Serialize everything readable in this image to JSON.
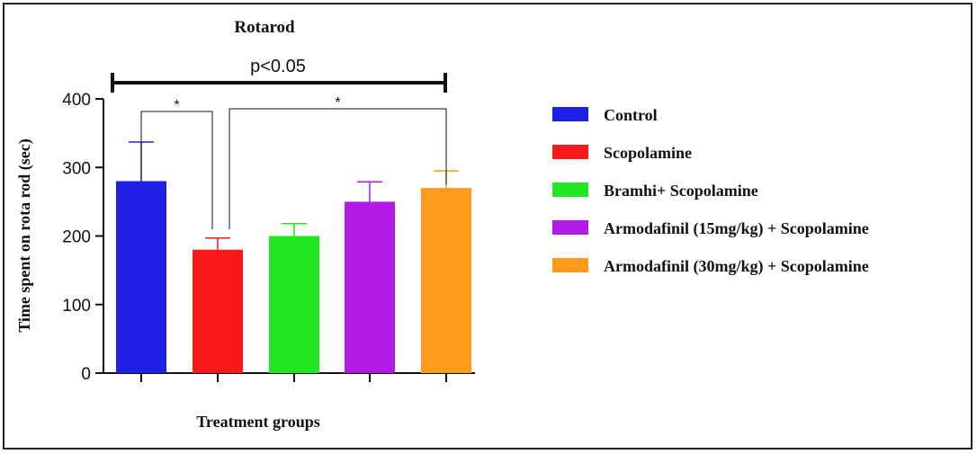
{
  "chart_data": {
    "type": "bar",
    "title": "Rotarod",
    "xlabel": "Treatment groups",
    "ylabel": "Time spent on rota rod (sec)",
    "ylim": [
      0,
      400
    ],
    "yticks": [
      "0",
      "100",
      "200",
      "300",
      "400"
    ],
    "grid": false,
    "legend_position": "right",
    "categories": [
      "Control",
      "Scopolamine",
      "Bramhi+ Scopolamine",
      "Armodafinil (15mg/kg) + Scopolamine",
      "Armodafinil (30mg/kg) + Scopolamine"
    ],
    "values": [
      280,
      180,
      200,
      250,
      270
    ],
    "errors": [
      57,
      17,
      18,
      29,
      25
    ],
    "colors": [
      "#1f1fe6",
      "#fa1a1a",
      "#22e622",
      "#b21ae6",
      "#ff9a1a"
    ],
    "significance": {
      "overall_label": "p<0.05",
      "overall_span": [
        "Control",
        "Armodafinil (30mg/kg) + Scopolamine"
      ],
      "pairs": [
        {
          "from": "Control",
          "to": "Scopolamine",
          "label": "*"
        },
        {
          "from": "Scopolamine",
          "to": "Armodafinil (30mg/kg) + Scopolamine",
          "label": "*"
        }
      ]
    }
  }
}
